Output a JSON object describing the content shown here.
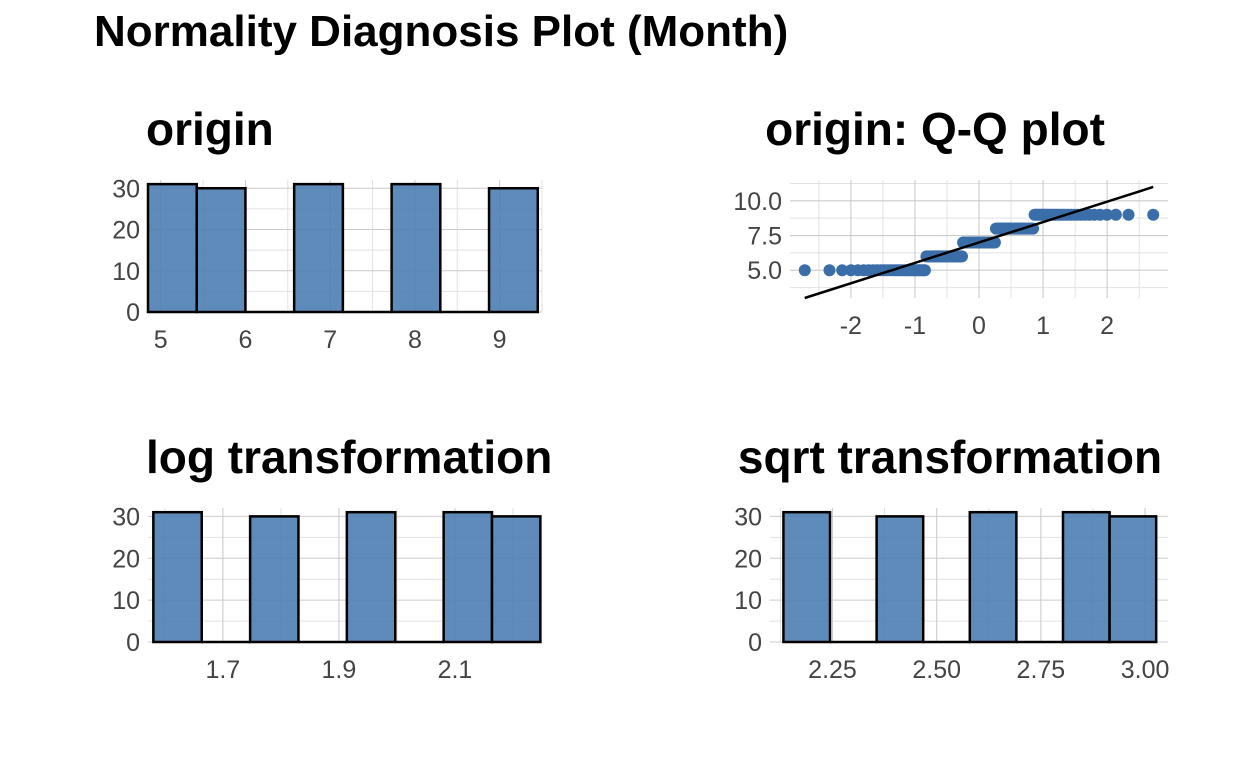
{
  "title": "Normality Diagnosis Plot (Month)",
  "colors": {
    "fill": "#4d7eb3",
    "stroke": "#000000",
    "point": "#3b6ea8",
    "line": "#000000",
    "grid": "#cccccc"
  },
  "chart_data": [
    {
      "type": "bar",
      "title": "origin",
      "x_ticks": [
        "5",
        "6",
        "7",
        "8",
        "9"
      ],
      "y_ticks": [
        "0",
        "10",
        "20",
        "30"
      ],
      "xlim": [
        4.85,
        9.5
      ],
      "ylim": [
        0,
        32
      ],
      "bins": [
        {
          "x0": 4.85,
          "x1": 5.425,
          "count": 31
        },
        {
          "x0": 5.425,
          "x1": 6.0,
          "count": 30
        },
        {
          "x0": 6.0,
          "x1": 6.575,
          "count": 0
        },
        {
          "x0": 6.575,
          "x1": 7.15,
          "count": 31
        },
        {
          "x0": 7.15,
          "x1": 7.725,
          "count": 0
        },
        {
          "x0": 7.725,
          "x1": 8.3,
          "count": 31
        },
        {
          "x0": 8.3,
          "x1": 8.875,
          "count": 0
        },
        {
          "x0": 8.875,
          "x1": 9.45,
          "count": 30
        }
      ]
    },
    {
      "type": "scatter",
      "title": "origin: Q-Q plot",
      "x_ticks": [
        "-2",
        "-1",
        "0",
        "1",
        "2"
      ],
      "y_ticks": [
        "5.0",
        "7.5",
        "10.0"
      ],
      "xlim": [
        -2.95,
        2.95
      ],
      "ylim": [
        3.0,
        11.5
      ],
      "groups": [
        {
          "y": 5,
          "count": 31
        },
        {
          "y": 6,
          "count": 30
        },
        {
          "y": 7,
          "count": 31
        },
        {
          "y": 8,
          "count": 31
        },
        {
          "y": 9,
          "count": 30
        }
      ],
      "reference_line": {
        "x": [
          -2.72,
          2.72
        ],
        "y": [
          3.0,
          11.0
        ]
      }
    },
    {
      "type": "bar",
      "title": "log transformation",
      "x_ticks": [
        "1.7",
        "1.9",
        "2.1"
      ],
      "y_ticks": [
        "0",
        "10",
        "20",
        "30"
      ],
      "xlim": [
        1.571,
        2.25
      ],
      "ylim": [
        0,
        32
      ],
      "bins": [
        {
          "x0": 1.5802,
          "x1": 1.6636,
          "count": 31
        },
        {
          "x0": 1.6636,
          "x1": 1.747,
          "count": 0
        },
        {
          "x0": 1.747,
          "x1": 1.8303,
          "count": 30
        },
        {
          "x0": 1.8303,
          "x1": 1.9137,
          "count": 0
        },
        {
          "x0": 1.9137,
          "x1": 1.9971,
          "count": 31
        },
        {
          "x0": 1.9971,
          "x1": 2.0805,
          "count": 0
        },
        {
          "x0": 2.0805,
          "x1": 2.1638,
          "count": 31
        },
        {
          "x0": 2.1638,
          "x1": 2.2472,
          "count": 30
        }
      ]
    },
    {
      "type": "bar",
      "title": "sqrt transformation",
      "x_ticks": [
        "2.25",
        "2.50",
        "2.75",
        "3.00"
      ],
      "y_ticks": [
        "0",
        "10",
        "20",
        "30"
      ],
      "xlim": [
        2.1,
        3.055
      ],
      "ylim": [
        0,
        32
      ],
      "bins": [
        {
          "x0": 2.1322,
          "x1": 2.244,
          "count": 31
        },
        {
          "x0": 2.244,
          "x1": 2.3558,
          "count": 0
        },
        {
          "x0": 2.3558,
          "x1": 2.4676,
          "count": 30
        },
        {
          "x0": 2.4676,
          "x1": 2.5794,
          "count": 0
        },
        {
          "x0": 2.5794,
          "x1": 2.6912,
          "count": 31
        },
        {
          "x0": 2.6912,
          "x1": 2.803,
          "count": 0
        },
        {
          "x0": 2.803,
          "x1": 2.9148,
          "count": 31
        },
        {
          "x0": 2.9148,
          "x1": 3.0266,
          "count": 30
        }
      ]
    }
  ]
}
